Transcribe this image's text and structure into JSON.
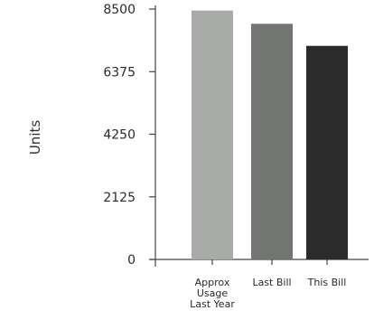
{
  "chart_data": {
    "type": "bar",
    "categories": [
      [
        "Approx",
        "Usage",
        "Last Year"
      ],
      [
        "Last Bill"
      ],
      [
        "This Bill"
      ]
    ],
    "values": [
      8450,
      8000,
      7250
    ],
    "colors": [
      "#a9aba8",
      "#737573",
      "#2b2b2b"
    ],
    "ylabel": "Units",
    "ylim": [
      0,
      8500
    ],
    "yticks": [
      0,
      2125,
      4250,
      6375,
      8500
    ],
    "ytick_labels": [
      "0",
      "2125",
      "4250",
      "6375",
      "8500"
    ]
  }
}
